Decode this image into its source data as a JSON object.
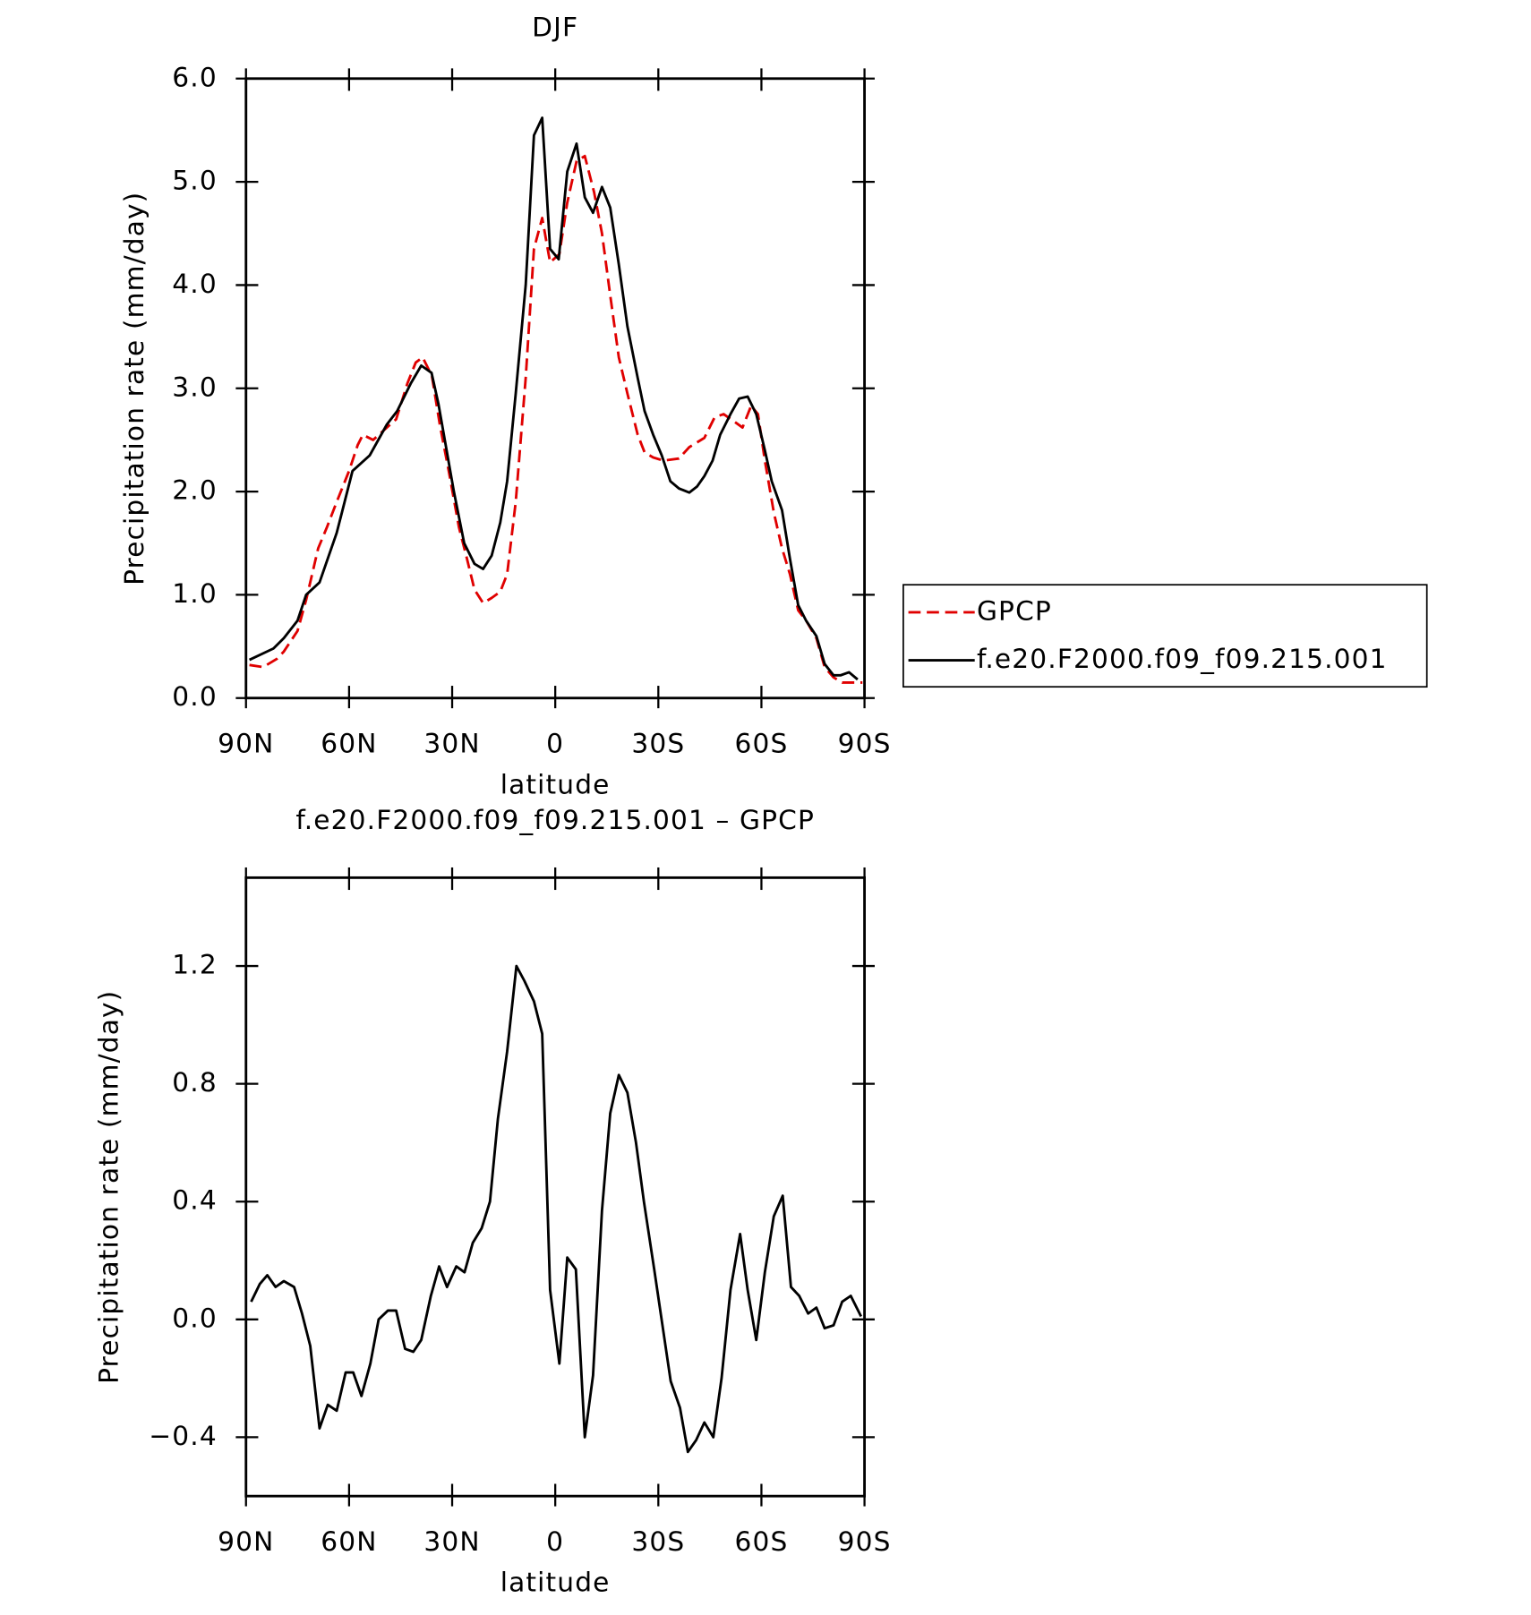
{
  "chart_data": [
    {
      "type": "line",
      "title": "DJF",
      "xlabel": "latitude",
      "ylabel": "Precipitation rate (mm/day)",
      "xlim": [
        90,
        -90
      ],
      "xticks": [
        {
          "value": 90,
          "label": "90N"
        },
        {
          "value": 60,
          "label": "60N"
        },
        {
          "value": 30,
          "label": "30N"
        },
        0,
        {
          "value": -30,
          "label": "30S"
        },
        {
          "value": -60,
          "label": "60S"
        },
        {
          "value": -90,
          "label": "90S"
        }
      ],
      "ylim": [
        0,
        6
      ],
      "yticks": [
        {
          "value": 0,
          "label": "0.0"
        },
        {
          "value": 1,
          "label": "1.0"
        },
        {
          "value": 2,
          "label": "2.0"
        },
        {
          "value": 3,
          "label": "3.0"
        },
        {
          "value": 4,
          "label": "4.0"
        },
        {
          "value": 5,
          "label": "5.0"
        },
        {
          "value": 6,
          "label": "6.0"
        }
      ],
      "legend": "right",
      "series": [
        {
          "name": "GPCP",
          "color": "#e00000",
          "linestyle": "dashed",
          "x": [
            89,
            85,
            81,
            79,
            75,
            72.5,
            69,
            66.5,
            63.6,
            60,
            57.5,
            56,
            53,
            49,
            46.3,
            43,
            40.6,
            38.6,
            35.9,
            33.6,
            31,
            28,
            25.7,
            23.5,
            21,
            18.5,
            16,
            14,
            11.5,
            8.6,
            6.2,
            3.8,
            1.5,
            -1.2,
            -3.5,
            -6.2,
            -8.6,
            -11.3,
            -13.6,
            -16,
            -18.5,
            -21,
            -24,
            -26,
            -28.5,
            -31.5,
            -36,
            -39,
            -43.4,
            -46.4,
            -49,
            -52,
            -54.5,
            -57,
            -59,
            -61,
            -63.6,
            -66,
            -68.3,
            -70.7,
            -73,
            -76,
            -78.4,
            -81,
            -83.5,
            -86.4,
            -89.4
          ],
          "values": [
            0.32,
            0.3,
            0.38,
            0.45,
            0.65,
            0.95,
            1.45,
            1.65,
            1.9,
            2.2,
            2.45,
            2.55,
            2.5,
            2.62,
            2.7,
            3.05,
            3.25,
            3.3,
            3.12,
            2.65,
            2.2,
            1.65,
            1.35,
            1.05,
            0.92,
            0.97,
            1.03,
            1.2,
            1.9,
            3.1,
            4.35,
            4.65,
            4.22,
            4.3,
            4.8,
            5.2,
            5.25,
            4.9,
            4.5,
            3.9,
            3.3,
            2.95,
            2.55,
            2.38,
            2.33,
            2.3,
            2.32,
            2.43,
            2.52,
            2.72,
            2.75,
            2.68,
            2.62,
            2.83,
            2.75,
            2.3,
            1.8,
            1.45,
            1.2,
            0.85,
            0.75,
            0.58,
            0.3,
            0.2,
            0.15,
            0.15,
            0.15
          ]
        },
        {
          "name": "f.e20.F2000.f09_f09.215.001",
          "color": "#000000",
          "linestyle": "solid",
          "x": [
            89,
            82,
            79,
            75,
            72.5,
            68.6,
            63.6,
            59,
            54,
            49,
            46,
            42,
            39,
            36,
            34,
            29.5,
            26.5,
            23.5,
            21,
            18.5,
            16,
            14,
            11.5,
            8.6,
            6.2,
            3.8,
            1.5,
            -1,
            -3.5,
            -6.2,
            -8.6,
            -11,
            -13.6,
            -16,
            -18.5,
            -21,
            -24,
            -26,
            -28.5,
            -31,
            -33.5,
            -36,
            -39,
            -41.3,
            -43.4,
            -45.8,
            -48,
            -51,
            -53.5,
            -56,
            -58.5,
            -61,
            -63,
            -66,
            -68.3,
            -70.7,
            -73,
            -76,
            -78.4,
            -81,
            -83,
            -85.5,
            -88
          ],
          "values": [
            0.37,
            0.48,
            0.58,
            0.75,
            1.0,
            1.12,
            1.6,
            2.2,
            2.35,
            2.65,
            2.78,
            3.05,
            3.22,
            3.15,
            2.85,
            2.0,
            1.5,
            1.3,
            1.25,
            1.38,
            1.7,
            2.1,
            2.95,
            4.0,
            5.45,
            5.62,
            4.35,
            4.25,
            5.1,
            5.37,
            4.85,
            4.7,
            4.95,
            4.75,
            4.2,
            3.6,
            3.1,
            2.78,
            2.55,
            2.35,
            2.1,
            2.03,
            1.99,
            2.05,
            2.15,
            2.3,
            2.55,
            2.75,
            2.9,
            2.92,
            2.75,
            2.4,
            2.1,
            1.82,
            1.35,
            0.9,
            0.75,
            0.6,
            0.33,
            0.22,
            0.22,
            0.25,
            0.18
          ]
        }
      ]
    },
    {
      "type": "line",
      "title": "f.e20.F2000.f09_f09.215.001 – GPCP",
      "xlabel": "latitude",
      "ylabel": "Precipitation rate (mm/day)",
      "xlim": [
        90,
        -90
      ],
      "xticks": [
        {
          "value": 90,
          "label": "90N"
        },
        {
          "value": 60,
          "label": "60N"
        },
        {
          "value": 30,
          "label": "30N"
        },
        0,
        {
          "value": -30,
          "label": "30S"
        },
        {
          "value": -60,
          "label": "60S"
        },
        {
          "value": -90,
          "label": "90S"
        }
      ],
      "ylim": [
        -0.6,
        1.5
      ],
      "yticks": [
        {
          "value": -0.4,
          "label": "−0.4"
        },
        {
          "value": 0,
          "label": "0.0"
        },
        {
          "value": 0.4,
          "label": "0.4"
        },
        {
          "value": 0.8,
          "label": "0.8"
        },
        {
          "value": 1.2,
          "label": "1.2"
        }
      ],
      "series": [
        {
          "color": "#000000",
          "linestyle": "solid",
          "x": [
            88.5,
            86,
            83.8,
            81.4,
            79,
            76,
            73.7,
            71.3,
            68.6,
            66.2,
            63.6,
            61,
            58.8,
            56.4,
            53.8,
            51.4,
            48.7,
            46.3,
            43.7,
            41.3,
            39,
            36.2,
            33.8,
            31.5,
            28.8,
            26.4,
            24,
            21.4,
            19,
            16.7,
            14,
            11.3,
            9,
            6.2,
            3.8,
            1.5,
            -1.2,
            -3.5,
            -6,
            -8.6,
            -11,
            -13.6,
            -16,
            -18.5,
            -21,
            -23.5,
            -25.8,
            -28.8,
            -31.2,
            -33.6,
            -36.3,
            -38.6,
            -41,
            -43.4,
            -46,
            -48.4,
            -51,
            -53.8,
            -56,
            -58.5,
            -61,
            -63.6,
            -66.2,
            -68.6,
            -71,
            -73.6,
            -76,
            -78.4,
            -81,
            -83.5,
            -86,
            -89
          ],
          "values": [
            0.06,
            0.12,
            0.15,
            0.11,
            0.13,
            0.11,
            0.02,
            -0.09,
            -0.37,
            -0.29,
            -0.31,
            -0.18,
            -0.18,
            -0.26,
            -0.15,
            0.0,
            0.03,
            0.03,
            -0.1,
            -0.11,
            -0.07,
            0.08,
            0.18,
            0.11,
            0.18,
            0.16,
            0.26,
            0.31,
            0.4,
            0.68,
            0.91,
            1.2,
            1.15,
            1.08,
            0.97,
            0.1,
            -0.15,
            0.21,
            0.17,
            -0.4,
            -0.19,
            0.37,
            0.7,
            0.83,
            0.77,
            0.6,
            0.4,
            0.17,
            -0.02,
            -0.21,
            -0.3,
            -0.45,
            -0.41,
            -0.35,
            -0.4,
            -0.2,
            0.1,
            0.29,
            0.1,
            -0.07,
            0.16,
            0.35,
            0.42,
            0.11,
            0.08,
            0.02,
            0.04,
            -0.03,
            -0.02,
            0.06,
            0.08,
            0.01
          ]
        }
      ]
    }
  ]
}
